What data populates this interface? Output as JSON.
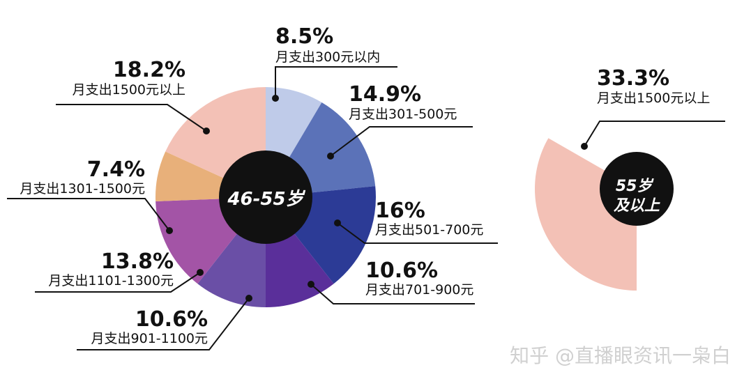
{
  "chart_data": [
    {
      "type": "pie",
      "center_label": "46-55岁",
      "categories": [
        "月支出300元以内",
        "月支出301-500元",
        "月支出501-700元",
        "月支出701-900元",
        "月支出901-1100元",
        "月支出1101-1300元",
        "月支出1301-1500元",
        "月支出1500元以上"
      ],
      "values": [
        8.5,
        14.9,
        16,
        10.6,
        10.6,
        13.8,
        7.4,
        18.2
      ],
      "value_labels": [
        "8.5%",
        "14.9%",
        "16%",
        "10.6%",
        "10.6%",
        "13.8%",
        "7.4%",
        "18.2%"
      ],
      "colors": [
        "#bfcbe9",
        "#5b72b8",
        "#2c3b96",
        "#5a2f9a",
        "#6a4fa6",
        "#a354a6",
        "#e8b07a",
        "#f3c1b6"
      ]
    },
    {
      "type": "pie",
      "center_label": "55岁及以上",
      "categories": [
        "月支出1500元以上"
      ],
      "values": [
        33.3
      ],
      "value_labels": [
        "33.3%"
      ],
      "colors": [
        "#f3c1b6"
      ]
    }
  ],
  "watermark": "知乎 @直播眼资讯一枭白"
}
